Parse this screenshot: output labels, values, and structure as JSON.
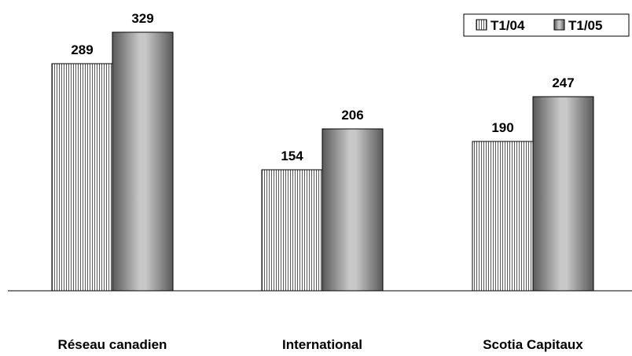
{
  "chart_data": {
    "type": "bar",
    "categories": [
      "Réseau canadien",
      "International",
      "Scotia Capitaux"
    ],
    "series": [
      {
        "name": "T1/04",
        "values": [
          289,
          154,
          190
        ],
        "pattern": "vertical-stripes",
        "color": "#ffffff",
        "stroke": "#444444"
      },
      {
        "name": "T1/05",
        "values": [
          329,
          206,
          247
        ],
        "pattern": "metallic-gradient",
        "color": "#999999"
      }
    ],
    "legend_position": "top-right",
    "grid": false,
    "y_axis_visible": false,
    "ylim": [
      0,
      345
    ]
  }
}
